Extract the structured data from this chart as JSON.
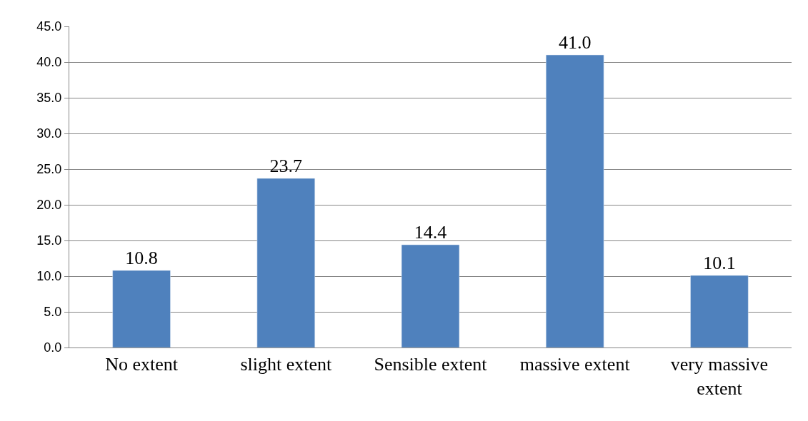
{
  "chart_data": {
    "type": "bar",
    "categories": [
      "No extent",
      "slight extent",
      "Sensible extent",
      "massive extent",
      "very massive extent"
    ],
    "values": [
      10.8,
      23.7,
      14.4,
      41.0,
      10.1
    ],
    "value_labels": [
      "10.8",
      "23.7",
      "14.4",
      "41.0",
      "10.1"
    ],
    "color": "#4f81bd",
    "ylim": [
      0,
      45
    ],
    "yticks": [
      {
        "value": 0,
        "label": "0.0"
      },
      {
        "value": 5,
        "label": "5.0"
      },
      {
        "value": 10,
        "label": "10.0"
      },
      {
        "value": 15,
        "label": "15.0"
      },
      {
        "value": 20,
        "label": "20.0"
      },
      {
        "value": 25,
        "label": "25.0"
      },
      {
        "value": 30,
        "label": "30.0"
      },
      {
        "value": 35,
        "label": "35.0"
      },
      {
        "value": 40,
        "label": "40.0"
      },
      {
        "value": 45,
        "label": "45.0"
      }
    ],
    "grid": "y"
  }
}
